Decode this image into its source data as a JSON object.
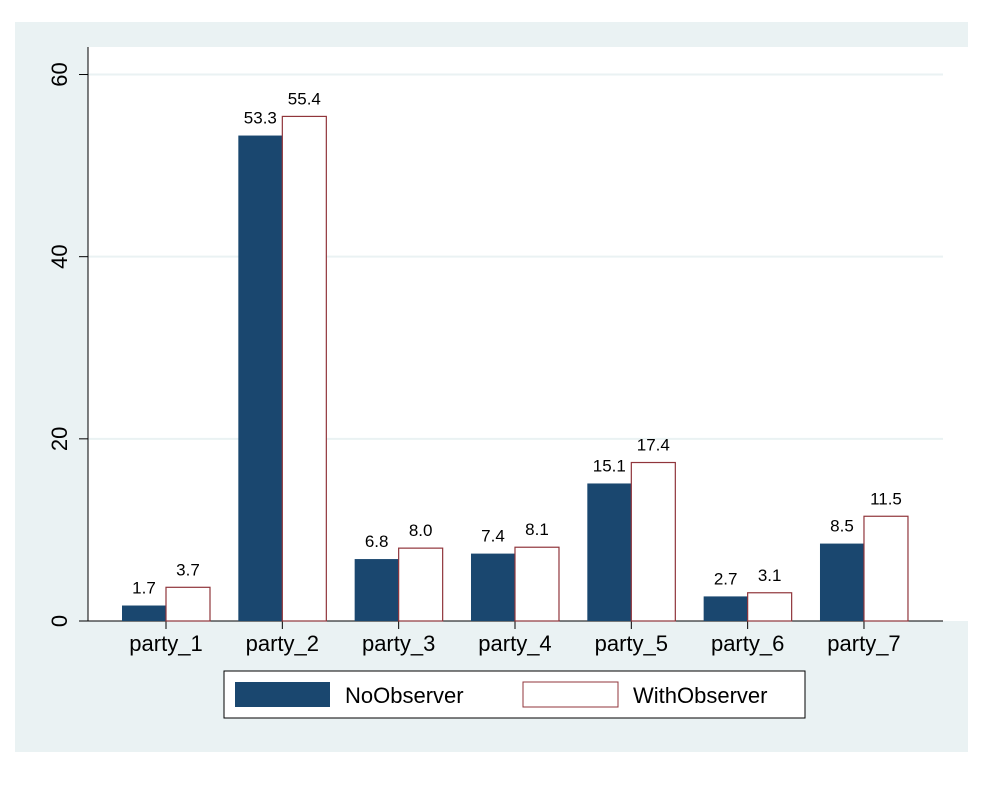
{
  "chart_data": {
    "type": "bar",
    "categories": [
      "party_1",
      "party_2",
      "party_3",
      "party_4",
      "party_5",
      "party_6",
      "party_7"
    ],
    "series": [
      {
        "name": "NoObserver",
        "values": [
          1.7,
          53.3,
          6.8,
          7.4,
          15.1,
          2.7,
          8.5
        ],
        "labels": [
          "1.7",
          "53.3",
          "6.8",
          "7.4",
          "15.1",
          "2.7",
          "8.5"
        ]
      },
      {
        "name": "WithObserver",
        "values": [
          3.7,
          55.4,
          8.0,
          8.1,
          17.4,
          3.1,
          11.5
        ],
        "labels": [
          "3.7",
          "55.4",
          "8.0",
          "8.1",
          "17.4",
          "3.1",
          "11.5"
        ]
      }
    ],
    "yticks": [
      "0",
      "20",
      "40",
      "60"
    ],
    "ylim": [
      0,
      63
    ],
    "grid": true,
    "legend_position": "bottom",
    "title": "",
    "xlabel": "",
    "ylabel": ""
  },
  "colors": {
    "outer_background": "#eaf2f3",
    "plot_background": "#ffffff",
    "gridline": "#eaf2f3",
    "series_1_fill": "#1a476f",
    "series_2_fill": "#ffffff",
    "series_2_outline": "#90353b",
    "axis": "#000000"
  }
}
